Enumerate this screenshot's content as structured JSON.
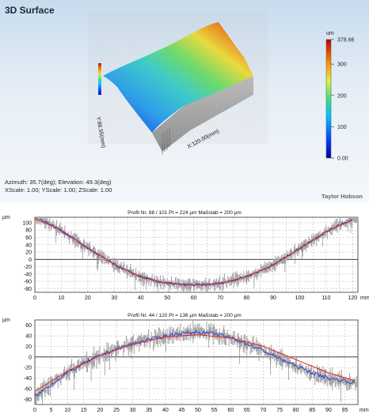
{
  "surface": {
    "title": "3D Surface",
    "view_line": "Azimuth: 35.7(deg); Elevation: 49.3(deg)",
    "scale_line": "XScale: 1.00; YScale: 1.00; ZScale: 1.00",
    "brand": "Taylor Hobson",
    "x_axis_label": "X:120.00(mm)",
    "y_axis_label": "Y:86.55(mm)",
    "colorbar_unit": "um",
    "colorbar_labels": [
      "378.66",
      "300",
      "200",
      "100",
      "0.00"
    ],
    "colorbar_values": [
      378.66,
      300,
      200,
      100,
      0
    ],
    "colorbar_range": [
      0,
      378.66
    ]
  },
  "colors": {
    "profile_gray": "#a8a8a8",
    "profile_blue": "#1a2fd0",
    "fit_red": "#e02020",
    "grid": "#b0b0b0"
  },
  "chart_data": [
    {
      "type": "line",
      "title": "Profil Nr. 88 / 101 Pt = 224 µm  Maßstab = 200 µm",
      "ylabel": "µm",
      "xlabel": "mm",
      "xlim": [
        0,
        122
      ],
      "ylim": [
        -90,
        115
      ],
      "x_ticks": [
        0,
        5,
        10,
        15,
        20,
        25,
        30,
        35,
        40,
        45,
        50,
        55,
        60,
        65,
        70,
        75,
        80,
        85,
        90,
        95,
        100,
        105,
        110,
        115,
        120
      ],
      "y_ticks": [
        -80,
        -60,
        -40,
        -20,
        0,
        20,
        40,
        60,
        80,
        100
      ],
      "x_tick_labels": [
        "0",
        "10",
        "20",
        "30",
        "40",
        "50",
        "60",
        "70",
        "80",
        "90",
        "100",
        "110",
        "120"
      ],
      "x_tick_label_values": [
        0,
        10,
        20,
        30,
        40,
        50,
        60,
        70,
        80,
        90,
        100,
        110,
        120
      ],
      "series": [
        {
          "name": "",
          "color": "#1a2fd0",
          "x": [
            2,
            6,
            10,
            15,
            20,
            25,
            30,
            35,
            40,
            45,
            50,
            55,
            60,
            65,
            70,
            75,
            80,
            85,
            90,
            95,
            100,
            105,
            110,
            115,
            120
          ],
          "values": [
            110,
            95,
            78,
            55,
            30,
            8,
            -14,
            -32,
            -47,
            -58,
            -65,
            -69,
            -70,
            -69,
            -65,
            -57,
            -46,
            -32,
            -15,
            8,
            30,
            53,
            75,
            95,
            108
          ]
        },
        {
          "name": "",
          "color": "#e02020",
          "x": [
            0,
            10,
            20,
            30,
            40,
            50,
            60,
            70,
            80,
            90,
            100,
            110,
            120
          ],
          "values": [
            112,
            80,
            32,
            -14,
            -48,
            -66,
            -70,
            -66,
            -47,
            -16,
            30,
            76,
            108
          ]
        }
      ]
    },
    {
      "type": "line",
      "title": "Profil Nr. 44 / 120 Pt = 136 µm  Maßstab = 200 µm",
      "ylabel": "µm",
      "xlabel": "mm",
      "xlim": [
        0,
        99
      ],
      "ylim": [
        -90,
        70
      ],
      "x_ticks": [
        0,
        5,
        10,
        15,
        20,
        25,
        30,
        35,
        40,
        45,
        50,
        55,
        60,
        65,
        70,
        75,
        80,
        85,
        90,
        95
      ],
      "y_ticks": [
        -80,
        -60,
        -40,
        -20,
        0,
        20,
        40,
        60
      ],
      "x_tick_labels": [
        "0",
        "5",
        "10",
        "15",
        "20",
        "25",
        "30",
        "35",
        "40",
        "45",
        "50",
        "55",
        "60",
        "65",
        "70",
        "75",
        "80",
        "85",
        "90",
        "95",
        "mm"
      ],
      "x_tick_label_values": [
        0,
        5,
        10,
        15,
        20,
        25,
        30,
        35,
        40,
        45,
        50,
        55,
        60,
        65,
        70,
        75,
        80,
        85,
        90,
        95
      ],
      "series": [
        {
          "name": "",
          "color": "#1a2fd0",
          "x": [
            0,
            5,
            10,
            15,
            20,
            25,
            30,
            35,
            40,
            45,
            50,
            55,
            60,
            65,
            70,
            75,
            80,
            85,
            90,
            95,
            98
          ],
          "values": [
            -75,
            -52,
            -30,
            -12,
            3,
            15,
            25,
            33,
            40,
            45,
            47,
            44,
            37,
            25,
            12,
            -3,
            -17,
            -30,
            -40,
            -45,
            -50
          ]
        },
        {
          "name": "",
          "color": "#e02020",
          "x": [
            0,
            10,
            20,
            30,
            40,
            50,
            60,
            70,
            80,
            90,
            98
          ],
          "values": [
            -65,
            -27,
            3,
            24,
            38,
            42,
            36,
            20,
            -5,
            -30,
            -45
          ]
        }
      ]
    }
  ]
}
